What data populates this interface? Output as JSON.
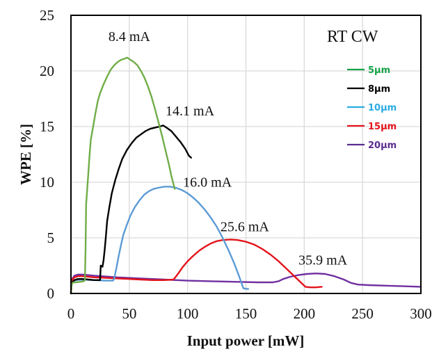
{
  "chart_data": {
    "type": "line",
    "title": "",
    "condition_label": "RT CW",
    "xlabel": "Input power [mW]",
    "ylabel": "WPE [%]",
    "xlim": [
      0,
      300
    ],
    "ylim": [
      0,
      25
    ],
    "xticks": [
      0,
      50,
      100,
      150,
      200,
      250,
      300
    ],
    "yticks": [
      0,
      5,
      10,
      15,
      20,
      25
    ],
    "xtick_labels": [
      "0",
      "50",
      "100",
      "150",
      "200",
      "250",
      "300"
    ],
    "ytick_labels": [
      "0",
      "5",
      "10",
      "15",
      "20",
      "25"
    ],
    "grid": true,
    "legend_position": "top-right",
    "series": [
      {
        "name": "5µm",
        "color": "#70ad47",
        "legend_color": "#16a34a",
        "points": [
          [
            0,
            0
          ],
          [
            0.5,
            0.6
          ],
          [
            1,
            0.9
          ],
          [
            2,
            1.0
          ],
          [
            4,
            1.0
          ],
          [
            8,
            1.05
          ],
          [
            11,
            1.1
          ],
          [
            12,
            1.2
          ],
          [
            12.5,
            4
          ],
          [
            13,
            8
          ],
          [
            14,
            9.5
          ],
          [
            15,
            11
          ],
          [
            16,
            12.5
          ],
          [
            17,
            13.8
          ],
          [
            19,
            15
          ],
          [
            21,
            16.2
          ],
          [
            23,
            17.3
          ],
          [
            25,
            18
          ],
          [
            28,
            18.8
          ],
          [
            31,
            19.5
          ],
          [
            34,
            20.1
          ],
          [
            37,
            20.5
          ],
          [
            40,
            20.8
          ],
          [
            43,
            21
          ],
          [
            46,
            21.1
          ],
          [
            48,
            21.2
          ],
          [
            51,
            21
          ],
          [
            54,
            20.8
          ],
          [
            57,
            20.5
          ],
          [
            60,
            20
          ],
          [
            63,
            19.4
          ],
          [
            66,
            18.6
          ],
          [
            69,
            17.7
          ],
          [
            72,
            16.6
          ],
          [
            75,
            15.4
          ],
          [
            78,
            14.2
          ],
          [
            81,
            12.9
          ],
          [
            84,
            11.6
          ],
          [
            86,
            10.6
          ],
          [
            88,
            9.8
          ],
          [
            89,
            9.4
          ]
        ],
        "annotation": {
          "text": "8.4 mA",
          "x": 50,
          "y": 22.7
        }
      },
      {
        "name": "8µm",
        "color": "#000000",
        "legend_color": "#000000",
        "points": [
          [
            0,
            0
          ],
          [
            0.5,
            0.7
          ],
          [
            1,
            1.0
          ],
          [
            3,
            1.2
          ],
          [
            6,
            1.3
          ],
          [
            10,
            1.3
          ],
          [
            15,
            1.25
          ],
          [
            20,
            1.2
          ],
          [
            25,
            1.2
          ],
          [
            25.5,
            2.5
          ],
          [
            27,
            2.4
          ],
          [
            28,
            3
          ],
          [
            29,
            4
          ],
          [
            30,
            5.2
          ],
          [
            31,
            6.5
          ],
          [
            33,
            7.8
          ],
          [
            35,
            9
          ],
          [
            38,
            10.2
          ],
          [
            41,
            11.2
          ],
          [
            44,
            12.1
          ],
          [
            48,
            12.9
          ],
          [
            52,
            13.5
          ],
          [
            56,
            14
          ],
          [
            60,
            14.3
          ],
          [
            64,
            14.6
          ],
          [
            68,
            14.8
          ],
          [
            72,
            14.9
          ],
          [
            76,
            15
          ],
          [
            79,
            15.1
          ],
          [
            82,
            14.9
          ],
          [
            86,
            14.6
          ],
          [
            90,
            14.1
          ],
          [
            94,
            13.6
          ],
          [
            98,
            13
          ],
          [
            101,
            12.4
          ],
          [
            103,
            12.2
          ]
        ],
        "annotation": {
          "text": "14.1 mA",
          "x": 102,
          "y": 16.0
        }
      },
      {
        "name": "10µm",
        "color": "#5b9bd5",
        "legend_color": "#29abe2",
        "points": [
          [
            0,
            0
          ],
          [
            0.5,
            0.7
          ],
          [
            1,
            1.0
          ],
          [
            4,
            1.2
          ],
          [
            10,
            1.25
          ],
          [
            20,
            1.2
          ],
          [
            30,
            1.15
          ],
          [
            36,
            1.15
          ],
          [
            37,
            1.3
          ],
          [
            39,
            2.3
          ],
          [
            41,
            3.4
          ],
          [
            43,
            4.4
          ],
          [
            45,
            5.3
          ],
          [
            48,
            6.2
          ],
          [
            51,
            7
          ],
          [
            55,
            7.8
          ],
          [
            59,
            8.4
          ],
          [
            63,
            8.9
          ],
          [
            67,
            9.2
          ],
          [
            71,
            9.4
          ],
          [
            75,
            9.5
          ],
          [
            80,
            9.6
          ],
          [
            85,
            9.6
          ],
          [
            90,
            9.5
          ],
          [
            95,
            9.3
          ],
          [
            100,
            9
          ],
          [
            105,
            8.6
          ],
          [
            110,
            8.1
          ],
          [
            115,
            7.5
          ],
          [
            120,
            6.8
          ],
          [
            125,
            6
          ],
          [
            130,
            5
          ],
          [
            135,
            3.9
          ],
          [
            140,
            2.7
          ],
          [
            144,
            1.6
          ],
          [
            147,
            0.7
          ],
          [
            148,
            0.45
          ],
          [
            152,
            0.4
          ]
        ],
        "annotation": {
          "text": "16.0 mA",
          "x": 117,
          "y": 9.6
        }
      },
      {
        "name": "15µm",
        "color": "#e3131b",
        "legend_color": "#e3131b",
        "points": [
          [
            0,
            0
          ],
          [
            0.5,
            0.9
          ],
          [
            1,
            1.2
          ],
          [
            3,
            1.45
          ],
          [
            6,
            1.55
          ],
          [
            10,
            1.55
          ],
          [
            20,
            1.45
          ],
          [
            30,
            1.4
          ],
          [
            40,
            1.35
          ],
          [
            50,
            1.3
          ],
          [
            60,
            1.25
          ],
          [
            70,
            1.2
          ],
          [
            80,
            1.2
          ],
          [
            88,
            1.25
          ],
          [
            92,
            1.8
          ],
          [
            96,
            2.4
          ],
          [
            100,
            2.9
          ],
          [
            105,
            3.4
          ],
          [
            110,
            3.85
          ],
          [
            115,
            4.2
          ],
          [
            120,
            4.5
          ],
          [
            125,
            4.7
          ],
          [
            130,
            4.8
          ],
          [
            137,
            4.85
          ],
          [
            143,
            4.8
          ],
          [
            150,
            4.65
          ],
          [
            157,
            4.4
          ],
          [
            164,
            4
          ],
          [
            171,
            3.5
          ],
          [
            178,
            2.9
          ],
          [
            185,
            2.2
          ],
          [
            192,
            1.5
          ],
          [
            198,
            0.9
          ],
          [
            201,
            0.6
          ],
          [
            205,
            0.55
          ],
          [
            210,
            0.55
          ],
          [
            215,
            0.6
          ]
        ],
        "annotation": {
          "text": "25.6 mA",
          "x": 149,
          "y": 5.6
        }
      },
      {
        "name": "20µm",
        "color": "#7030a0",
        "legend_color": "#5b2c8f",
        "points": [
          [
            0,
            0
          ],
          [
            0.5,
            0.9
          ],
          [
            1,
            1.3
          ],
          [
            3,
            1.6
          ],
          [
            6,
            1.7
          ],
          [
            10,
            1.7
          ],
          [
            20,
            1.6
          ],
          [
            40,
            1.45
          ],
          [
            60,
            1.35
          ],
          [
            80,
            1.25
          ],
          [
            100,
            1.15
          ],
          [
            120,
            1.1
          ],
          [
            140,
            1.05
          ],
          [
            160,
            1.0
          ],
          [
            173,
            1.0
          ],
          [
            178,
            1.1
          ],
          [
            182,
            1.3
          ],
          [
            188,
            1.5
          ],
          [
            195,
            1.65
          ],
          [
            202,
            1.75
          ],
          [
            210,
            1.8
          ],
          [
            218,
            1.75
          ],
          [
            226,
            1.55
          ],
          [
            234,
            1.25
          ],
          [
            240,
            0.95
          ],
          [
            246,
            0.8
          ],
          [
            255,
            0.75
          ],
          [
            270,
            0.7
          ],
          [
            285,
            0.65
          ],
          [
            300,
            0.6
          ]
        ],
        "annotation": {
          "text": "35.9 mA",
          "x": 216,
          "y": 2.6
        }
      }
    ]
  }
}
